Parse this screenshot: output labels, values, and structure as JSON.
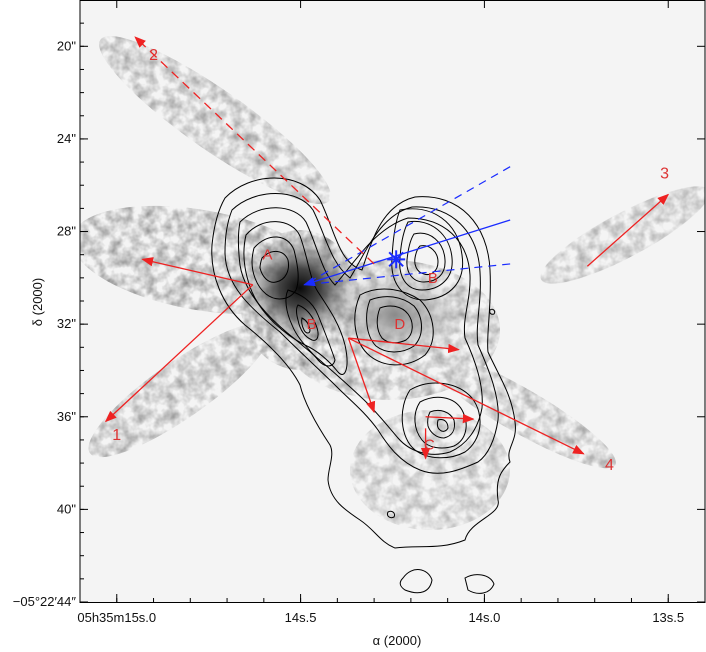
{
  "chart_data": {
    "type": "contour-map",
    "xlabel": "α (2000)",
    "ylabel": "δ (2000)",
    "x_ticks": [
      {
        "label": "05h35m15s.0",
        "ra_s": 15.0
      },
      {
        "label": "14s.5",
        "ra_s": 14.5
      },
      {
        "label": "14s.0",
        "ra_s": 14.0
      },
      {
        "label": "13s.5",
        "ra_s": 13.5
      }
    ],
    "y_ticks": [
      {
        "label": "20\"",
        "dec": 20
      },
      {
        "label": "24\"",
        "dec": 24
      },
      {
        "label": "28\"",
        "dec": 28
      },
      {
        "label": "32\"",
        "dec": 32
      },
      {
        "label": "36\"",
        "dec": 36
      },
      {
        "label": "40\"",
        "dec": 40
      },
      {
        "label": "−05°22′44″",
        "dec": 44
      }
    ],
    "xlim": [
      15.1,
      13.4
    ],
    "ylim": [
      44,
      18
    ],
    "peaks": [
      {
        "label": "A",
        "ra_s": 14.59,
        "dec": 29.0
      },
      {
        "label": "B",
        "ra_s": 14.47,
        "dec": 32.0
      },
      {
        "label": "B",
        "ra_s": 14.14,
        "dec": 30.0
      },
      {
        "label": "D",
        "ra_s": 14.23,
        "dec": 32.0
      },
      {
        "label": "C",
        "ra_s": 14.15,
        "dec": 37.2
      }
    ],
    "arrows": [
      {
        "label": "1",
        "start": [
          14.63,
          30.3
        ],
        "end": [
          15.03,
          36.2
        ],
        "style": "solid",
        "label_pos": [
          15.0,
          37.0
        ]
      },
      {
        "label": "1",
        "start": [
          14.63,
          30.3
        ],
        "end": [
          14.93,
          29.2
        ],
        "style": "solid",
        "label_pos": null
      },
      {
        "label": "2",
        "start": [
          14.3,
          29.4
        ],
        "end": [
          14.95,
          19.6
        ],
        "style": "dashed",
        "label_pos": [
          14.9,
          20.6
        ]
      },
      {
        "label": "3",
        "start": [
          13.72,
          29.5
        ],
        "end": [
          13.5,
          26.4
        ],
        "style": "solid",
        "label_pos": [
          13.51,
          25.7
        ]
      },
      {
        "label": "4",
        "start": [
          14.37,
          32.6
        ],
        "end": [
          13.73,
          37.6
        ],
        "style": "solid",
        "label_pos": [
          13.66,
          38.3
        ]
      },
      {
        "label": "",
        "start": [
          14.37,
          32.6
        ],
        "end": [
          14.07,
          33.1
        ],
        "style": "solid",
        "label_pos": null
      },
      {
        "label": "",
        "start": [
          14.37,
          32.6
        ],
        "end": [
          14.3,
          35.8
        ],
        "style": "solid",
        "label_pos": null
      },
      {
        "label": "",
        "start": [
          14.16,
          36.0
        ],
        "end": [
          14.03,
          36.1
        ],
        "style": "solid",
        "label_pos": null
      },
      {
        "label": "",
        "start": [
          14.16,
          36.5
        ],
        "end": [
          14.16,
          37.8
        ],
        "style": "solid",
        "label_pos": null
      }
    ],
    "blue_outflow": {
      "marker": [
        14.24,
        29.2
      ],
      "solid_line": {
        "start": [
          13.93,
          27.5
        ],
        "end": [
          14.49,
          30.3
        ]
      },
      "dashed_lines": [
        {
          "start": [
            13.93,
            25.2
          ],
          "end": [
            14.49,
            30.3
          ]
        },
        {
          "start": [
            13.93,
            29.4
          ],
          "end": [
            14.49,
            30.3
          ]
        }
      ]
    },
    "colors": {
      "arrows": "#ee2222",
      "labels": "#dd3333",
      "blue": "#1a2cff",
      "contours": "#000000"
    },
    "grid": false
  }
}
